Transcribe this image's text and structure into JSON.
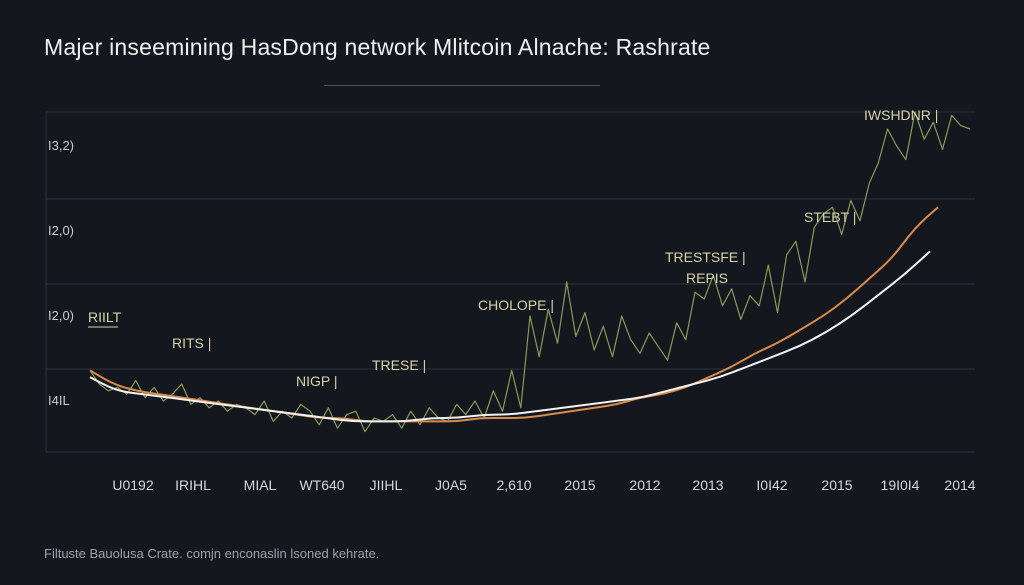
{
  "title": "Majer inseemining HasDong network Mlitcoin Alnache: Rashrate",
  "footer": "Filtuste Bauolusa Crate. comjn enconaslin lsoned kehrate.",
  "colors": {
    "background": "#14171d",
    "noisy_series": "#8a9a58",
    "trend_orange": "#d98c4a",
    "trend_white": "#f2f2f2",
    "grid": "#2c313a",
    "annotation": "#d7d2a8"
  },
  "chart_data": {
    "type": "line",
    "title": "Majer inseemining HasDong network Mlitcoin Alnache: Rashrate",
    "xlabel": "",
    "ylabel": "",
    "x_tick_labels": [
      "U0192",
      "IRIHL",
      "MIAL",
      "WT640",
      "JIIHL",
      "J0A5",
      "2,610",
      "2015",
      "2012",
      "2013",
      "I0I42",
      "2015",
      "19I0I4",
      "2014"
    ],
    "y_tick_labels": [
      "I3,2)",
      "I2,0)",
      "I2,0)",
      "I4IL"
    ],
    "ylim": [
      0,
      100
    ],
    "grid": true,
    "legend": "none",
    "series": [
      {
        "style": "noisy",
        "values": [
          24,
          20,
          18,
          19,
          17,
          21,
          16,
          19,
          15,
          17,
          20,
          14,
          16,
          13,
          15,
          12,
          14,
          13,
          11,
          15,
          9,
          12,
          10,
          14,
          12,
          8,
          13,
          7,
          11,
          12,
          6,
          10,
          9,
          11,
          7,
          12,
          8,
          13,
          10,
          9,
          14,
          11,
          15,
          10,
          18,
          12,
          24,
          13,
          40,
          28,
          42,
          32,
          50,
          34,
          41,
          30,
          37,
          28,
          40,
          33,
          29,
          35,
          31,
          27,
          38,
          33,
          47,
          45,
          52,
          43,
          48,
          39,
          46,
          43,
          55,
          41,
          58,
          62,
          50,
          66,
          70,
          72,
          64,
          74,
          68,
          79,
          85,
          95,
          90,
          86,
          100,
          92,
          97,
          89,
          99,
          96,
          95
        ]
      },
      {
        "style": "smooth",
        "color": "orange",
        "values": [
          24,
          20,
          18,
          17,
          16,
          15,
          14,
          13,
          12,
          11,
          10,
          10,
          9,
          9,
          9,
          9,
          9,
          10,
          10,
          10,
          11,
          12,
          13,
          14,
          16,
          17,
          19,
          22,
          25,
          29,
          32,
          36,
          40,
          45,
          51,
          57,
          66,
          72
        ]
      },
      {
        "style": "smooth",
        "color": "white",
        "values": [
          22,
          18,
          17,
          16,
          15,
          14,
          13,
          12,
          11,
          10,
          9,
          9,
          9,
          10,
          10,
          11,
          11,
          12,
          13,
          14,
          15,
          16,
          18,
          20,
          22,
          25,
          28,
          31,
          35,
          40,
          46,
          52,
          59
        ]
      }
    ],
    "annotations": [
      {
        "text": "RIILT",
        "x_index": 0.4,
        "y": 34
      },
      {
        "text": "RITS |",
        "x_index": 1.8,
        "y": 23
      },
      {
        "text": "NIGP |",
        "x_index": 5.7,
        "y": 12
      },
      {
        "text": "TRESE |",
        "x_index": 7.4,
        "y": 19
      },
      {
        "text": "CHOLOPE |",
        "x_index": 10.1,
        "y": 40
      },
      {
        "text": "TRESTSFE |",
        "x_index": 13.3,
        "y": 55
      },
      {
        "text": "REPIS",
        "x_index": 13.6,
        "y": 50
      },
      {
        "text": "STEBT |",
        "x_index": 16.6,
        "y": 70
      },
      {
        "text": "IWSHDNR |",
        "x_index": 18.2,
        "y": 95
      }
    ]
  }
}
